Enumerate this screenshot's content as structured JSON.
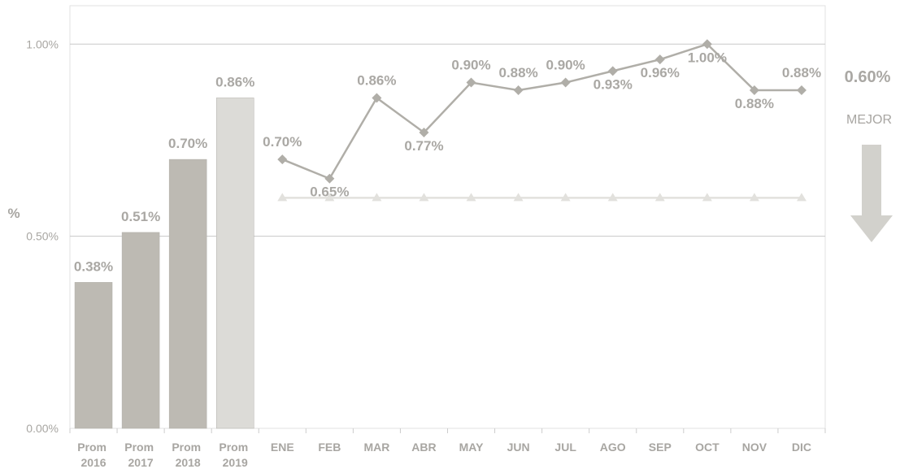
{
  "chart_data": {
    "type": "bar-line",
    "y_label": "%",
    "categories": [
      "Prom 2016",
      "Prom 2017",
      "Prom 2018",
      "Prom 2019",
      "ENE",
      "FEB",
      "MAR",
      "ABR",
      "MAY",
      "JUN",
      "JUL",
      "AGO",
      "SEP",
      "OCT",
      "NOV",
      "DIC"
    ],
    "series": [
      {
        "type": "bar",
        "colors": [
          "#bdbab3",
          "#bdbab3",
          "#bdbab3",
          "#dcdbd7"
        ],
        "values": [
          0.38,
          0.51,
          0.7,
          0.86,
          null,
          null,
          null,
          null,
          null,
          null,
          null,
          null,
          null,
          null,
          null,
          null
        ],
        "value_labels": [
          "0.38%",
          "0.51%",
          "0.70%",
          "0.86%",
          null,
          null,
          null,
          null,
          null,
          null,
          null,
          null,
          null,
          null,
          null,
          null
        ]
      },
      {
        "type": "line",
        "color": "#b0aea8",
        "values": [
          null,
          null,
          null,
          null,
          0.7,
          0.65,
          0.86,
          0.77,
          0.9,
          0.88,
          0.9,
          0.93,
          0.96,
          1.0,
          0.88,
          0.88
        ],
        "value_labels": [
          null,
          null,
          null,
          null,
          "0.70%",
          "0.65%",
          "0.86%",
          "0.77%",
          "0.90%",
          "0.88%",
          "0.90%",
          "0.93%",
          "0.96%",
          "1.00%",
          "0.88%",
          "0.88%"
        ]
      },
      {
        "type": "line",
        "color": "#e2e1dd",
        "values": [
          null,
          null,
          null,
          null,
          0.6,
          0.6,
          0.6,
          0.6,
          0.6,
          0.6,
          0.6,
          0.6,
          0.6,
          0.6,
          0.6,
          0.6
        ]
      }
    ],
    "annotations": [
      "0.60%",
      "MEJOR"
    ],
    "ylim": [
      0,
      1.1
    ],
    "yticks": [
      {
        "value": 0,
        "label": "0.00%"
      },
      {
        "value": 0.5,
        "label": "0.50%"
      },
      {
        "value": 1,
        "label": "1.00%"
      }
    ],
    "grid": true
  }
}
